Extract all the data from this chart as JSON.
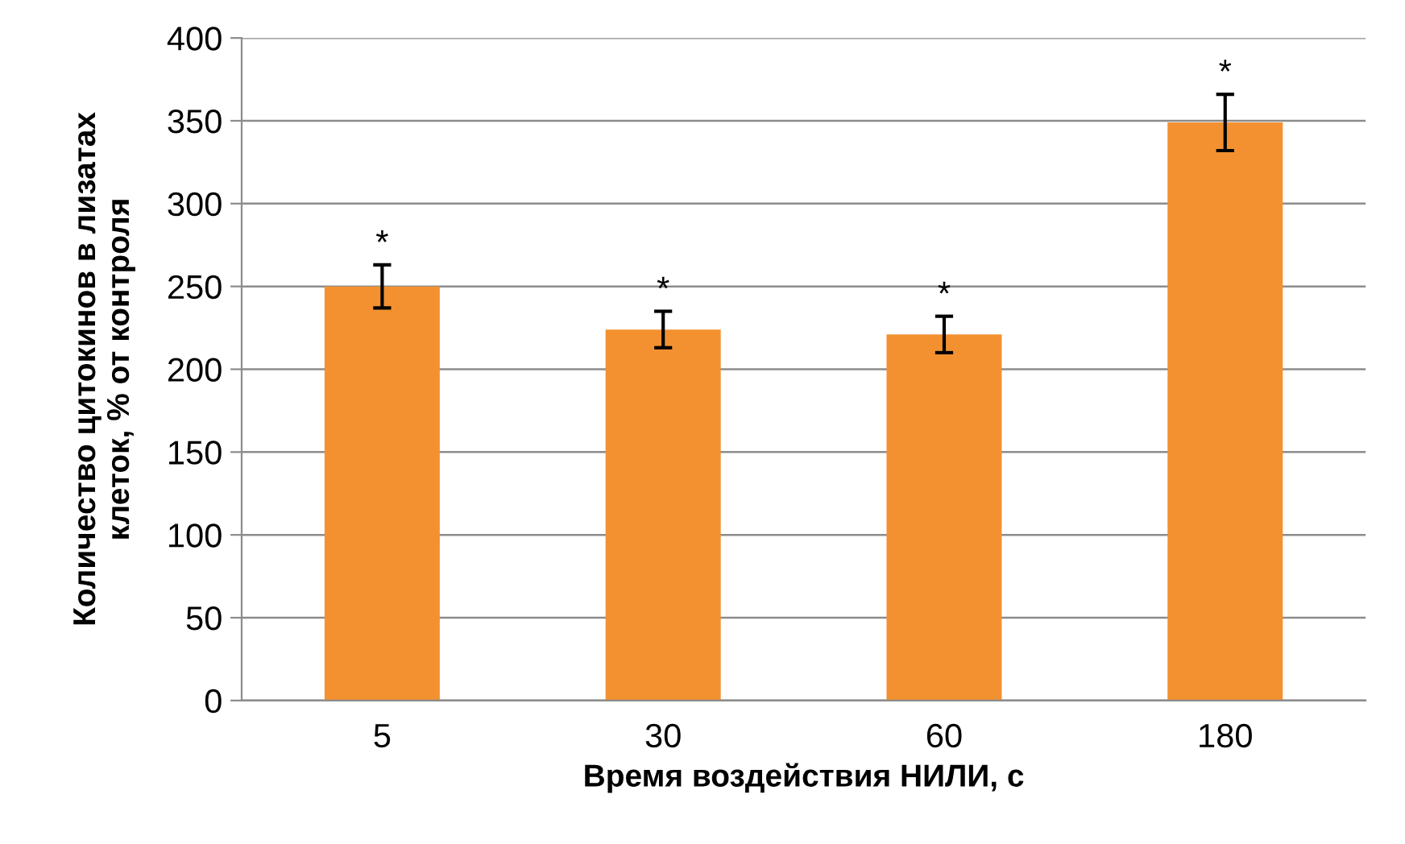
{
  "chart_data": {
    "type": "bar",
    "categories": [
      "5",
      "30",
      "60",
      "180"
    ],
    "values": [
      250,
      224,
      221,
      349
    ],
    "errors": [
      13,
      11,
      11,
      17
    ],
    "color": "#f39130",
    "xlabel": "Время воздействия НИЛИ, с",
    "ylabel": "Количество цитокинов в лизатах\nклеток, % от контроля",
    "ylim": [
      0,
      400
    ],
    "yticks": [
      0,
      50,
      100,
      150,
      200,
      250,
      300,
      350,
      400
    ],
    "grid": "y",
    "annotations": [
      {
        "text": "*",
        "x": "5",
        "y": 263
      },
      {
        "text": "*",
        "x": "30",
        "y": 235
      },
      {
        "text": "*",
        "x": "60",
        "y": 232
      },
      {
        "text": "*",
        "x": "180",
        "y": 366
      }
    ]
  }
}
